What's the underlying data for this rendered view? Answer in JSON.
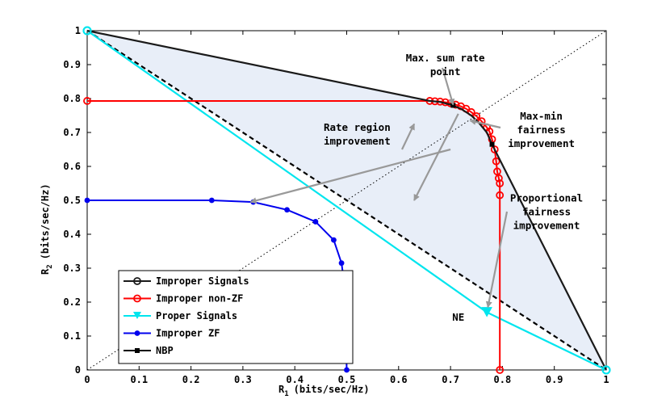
{
  "chart_data": {
    "type": "line",
    "xlabel_main": "R",
    "xlabel_sub": "1",
    "xlabel_unit": "(bits/sec/Hz)",
    "ylabel_main": "R",
    "ylabel_sub": "2",
    "ylabel_unit": "(bits/sec/Hz)",
    "xlim": [
      0,
      1
    ],
    "ylim": [
      0,
      1
    ],
    "xticks": [
      0,
      0.1,
      0.2,
      0.3,
      0.4,
      0.5,
      0.6,
      0.7,
      0.8,
      0.9,
      1
    ],
    "yticks": [
      0,
      0.1,
      0.2,
      0.3,
      0.4,
      0.5,
      0.6,
      0.7,
      0.8,
      0.9,
      1
    ],
    "xtick_labels": [
      "0",
      "0.1",
      "0.2",
      "0.3",
      "0.4",
      "0.5",
      "0.6",
      "0.7",
      "0.8",
      "0.9",
      "1"
    ],
    "ytick_labels": [
      "0",
      "0.1",
      "0.2",
      "0.3",
      "0.4",
      "0.5",
      "0.6",
      "0.7",
      "0.8",
      "0.9",
      "1"
    ],
    "colors": {
      "improper_signals": "#1a1a1a",
      "improper_non_zf": "#ff0000",
      "proper_signals": "#00e5ee",
      "improper_zf": "#0000ee",
      "nbp": "#000000",
      "region_fill": "#e8eef8",
      "arrow": "#999999"
    },
    "series": [
      {
        "name": "Improper Signals",
        "marker": "circle-open",
        "x": [
          0,
          0.66,
          0.68,
          0.7,
          0.72,
          0.74,
          0.755,
          0.77,
          0.78,
          1
        ],
        "y": [
          1,
          0.793,
          0.79,
          0.782,
          0.77,
          0.75,
          0.728,
          0.7,
          0.665,
          0
        ]
      },
      {
        "name": "Improper non-ZF",
        "marker": "circle-open",
        "x": [
          0,
          0.66,
          0.67,
          0.68,
          0.69,
          0.7,
          0.71,
          0.72,
          0.73,
          0.74,
          0.75,
          0.76,
          0.77,
          0.775,
          0.78,
          0.785,
          0.788,
          0.79,
          0.793,
          0.795,
          0.795,
          0.795
        ],
        "y": [
          0.793,
          0.793,
          0.792,
          0.791,
          0.789,
          0.786,
          0.782,
          0.777,
          0.77,
          0.76,
          0.748,
          0.733,
          0.715,
          0.703,
          0.68,
          0.65,
          0.615,
          0.585,
          0.565,
          0.55,
          0.515,
          0
        ]
      },
      {
        "name": "Proper Signals",
        "marker": "triangle-down",
        "x": [
          0,
          0.77,
          1
        ],
        "y": [
          1,
          0.17,
          0
        ]
      },
      {
        "name": "Improper ZF",
        "marker": "dot",
        "x": [
          0,
          0.24,
          0.32,
          0.385,
          0.44,
          0.475,
          0.49,
          0.497,
          0.5
        ],
        "y": [
          0.5,
          0.5,
          0.495,
          0.472,
          0.437,
          0.383,
          0.315,
          0.237,
          0
        ]
      },
      {
        "name": "NBP",
        "marker": "square",
        "x": [
          0.705,
          0.78
        ],
        "y": [
          0.78,
          0.665
        ]
      }
    ],
    "reference_lines": [
      {
        "name": "dashed-line",
        "x": [
          0,
          1
        ],
        "y": [
          1,
          0
        ]
      },
      {
        "name": "diagonal",
        "x": [
          0,
          1
        ],
        "y": [
          0,
          1
        ]
      }
    ],
    "annotations": [
      {
        "lines": [
          "Max. sum rate",
          "point"
        ],
        "anchor": [
          0.69,
          0.91
        ],
        "arrow_to": [
          0.705,
          0.782
        ]
      },
      {
        "lines": [
          "Rate region",
          "improvement"
        ],
        "anchor": [
          0.52,
          0.705
        ],
        "arrow_to": [
          0.63,
          0.725
        ]
      },
      {
        "lines": [
          "Max-min",
          "fairness",
          "improvement"
        ],
        "anchor": [
          0.875,
          0.738
        ],
        "arrow_to": [
          0.738,
          0.735
        ]
      },
      {
        "lines": [
          "Proportional",
          "fairness",
          "improvement"
        ],
        "anchor": [
          0.885,
          0.497
        ],
        "arrow_to": [
          0.772,
          0.185
        ]
      },
      {
        "lines": [
          "NE"
        ],
        "anchor": [
          0.715,
          0.145
        ],
        "arrow_to": null
      }
    ],
    "legend": {
      "location": "lower-left",
      "entries": [
        "Improper Signals",
        "Improper non-ZF",
        "Proper Signals",
        "Improper ZF",
        "NBP"
      ]
    }
  }
}
